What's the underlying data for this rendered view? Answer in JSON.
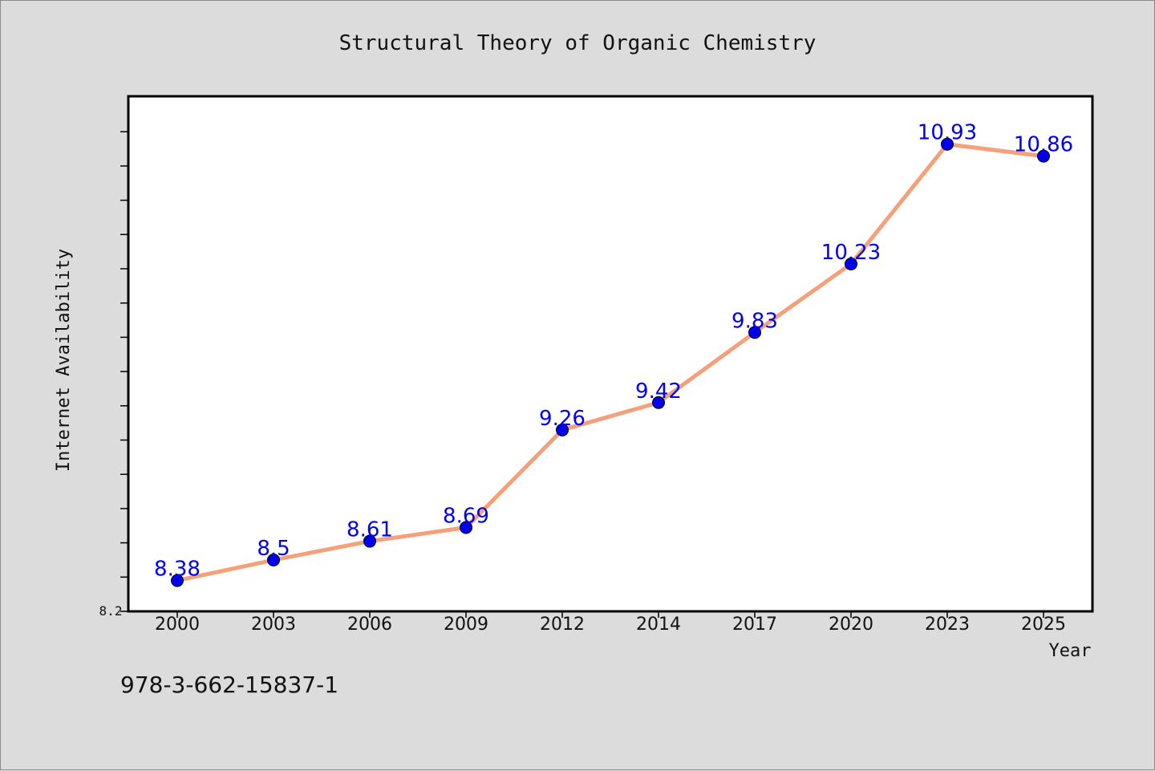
{
  "chart_data": {
    "type": "line",
    "title": "Structural Theory of Organic Chemistry",
    "xlabel": "Year",
    "ylabel": "Internet Availability",
    "categories": [
      "2000",
      "2003",
      "2006",
      "2009",
      "2012",
      "2014",
      "2017",
      "2020",
      "2023",
      "2025"
    ],
    "series": [
      {
        "values": [
          8.38,
          8.5,
          8.61,
          8.69,
          9.26,
          9.42,
          9.83,
          10.23,
          10.93,
          10.86
        ]
      }
    ],
    "data_labels": [
      "8.38",
      "8.5",
      "8.61",
      "8.69",
      "9.26",
      "9.42",
      "9.83",
      "10.23",
      "10.93",
      "10.86"
    ],
    "ylim": [
      8.2,
      11.21
    ],
    "y_tick_label_shown": "8.2",
    "grid": false,
    "colors": {
      "line": "#f4a07a",
      "marker": "#0000ee",
      "label": "#0000ee",
      "plot_bg": "#ffffff",
      "page_bg": "#dcdcdc"
    }
  },
  "footer": {
    "isbn": "978-3-662-15837-1"
  }
}
